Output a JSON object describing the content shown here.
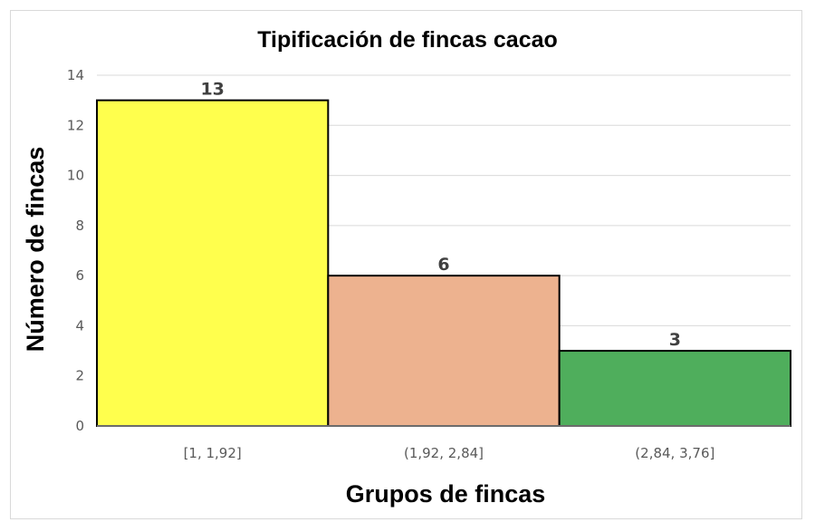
{
  "chart_data": {
    "type": "bar",
    "title": "Tipificación de fincas cacao",
    "xlabel": "Grupos de fincas",
    "ylabel": "Número de fincas",
    "categories": [
      "[1, 1,92]",
      "(1,92, 2,84]",
      "(2,84, 3,76]"
    ],
    "values": [
      13,
      6,
      3
    ],
    "colors": [
      "#ffff4d",
      "#edb28f",
      "#4fae5c"
    ],
    "ylim": [
      0,
      14
    ],
    "yticks": [
      0,
      2,
      4,
      6,
      8,
      10,
      12,
      14
    ],
    "grid": true,
    "legend": "none",
    "data_labels": true
  }
}
